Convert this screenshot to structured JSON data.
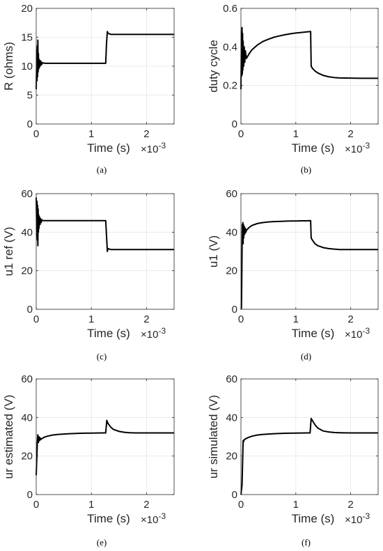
{
  "chart_data": [
    {
      "type": "line",
      "caption": "(a)",
      "xlabel": "Time (s)",
      "ylabel": "R (ohms)",
      "x_exponent": "×10",
      "x_exponent_power": "-3",
      "xlim": [
        0,
        2.5
      ],
      "ylim": [
        0,
        20
      ],
      "xticks": [
        0,
        1,
        2
      ],
      "yticks": [
        0,
        5,
        10,
        15,
        20
      ],
      "grid": true,
      "series": [
        {
          "x": [
            0,
            0.01,
            0.015,
            0.02,
            0.025,
            0.03,
            0.035,
            0.04,
            0.045,
            0.05,
            0.06,
            0.07,
            0.08,
            0.09,
            0.1,
            0.12,
            0.15,
            1.26,
            1.275,
            1.29,
            1.3,
            1.35,
            2.5
          ],
          "y": [
            6,
            12.8,
            7.5,
            13.5,
            8.2,
            14.5,
            9,
            12.2,
            9.5,
            11.2,
            9.8,
            11.0,
            10.1,
            10.8,
            10.3,
            10.6,
            10.5,
            10.5,
            14.0,
            16.0,
            15.7,
            15.5,
            15.5
          ]
        }
      ]
    },
    {
      "type": "line",
      "caption": "(b)",
      "xlabel": "Time (s)",
      "ylabel": "duty cycle",
      "x_exponent": "×10",
      "x_exponent_power": "-3",
      "xlim": [
        0,
        2.5
      ],
      "ylim": [
        0,
        0.6
      ],
      "xticks": [
        0,
        1,
        2
      ],
      "yticks": [
        0,
        0.2,
        0.4,
        0.6
      ],
      "grid": true,
      "series": [
        {
          "x": [
            0,
            0.01,
            0.015,
            0.02,
            0.025,
            0.03,
            0.035,
            0.04,
            0.05,
            0.06,
            0.07,
            0.08,
            0.1,
            0.15,
            0.2,
            0.3,
            0.4,
            0.5,
            0.6,
            0.7,
            0.8,
            0.9,
            1.0,
            1.1,
            1.2,
            1.27,
            1.28,
            1.3,
            1.35,
            1.4,
            1.5,
            1.6,
            1.7,
            1.8,
            2.0,
            2.2,
            2.5
          ],
          "y": [
            0.18,
            0.48,
            0.25,
            0.5,
            0.26,
            0.47,
            0.28,
            0.43,
            0.3,
            0.4,
            0.32,
            0.38,
            0.34,
            0.365,
            0.385,
            0.41,
            0.428,
            0.44,
            0.45,
            0.457,
            0.463,
            0.468,
            0.472,
            0.475,
            0.478,
            0.48,
            0.3,
            0.29,
            0.275,
            0.265,
            0.252,
            0.245,
            0.241,
            0.239,
            0.238,
            0.237,
            0.237
          ]
        }
      ]
    },
    {
      "type": "line",
      "caption": "(c)",
      "xlabel": "Time (s)",
      "ylabel": "u1 ref (V)",
      "x_exponent": "×10",
      "x_exponent_power": "-3",
      "xlim": [
        0,
        2.5
      ],
      "ylim": [
        0,
        60
      ],
      "xticks": [
        0,
        1,
        2
      ],
      "yticks": [
        0,
        20,
        40,
        60
      ],
      "grid": true,
      "series": [
        {
          "x": [
            0,
            0.01,
            0.015,
            0.02,
            0.025,
            0.03,
            0.035,
            0.04,
            0.045,
            0.05,
            0.06,
            0.07,
            0.08,
            0.09,
            0.1,
            0.12,
            0.15,
            1.26,
            1.275,
            1.29,
            1.3,
            1.35,
            2.5
          ],
          "y": [
            58,
            38,
            56,
            36,
            54,
            33,
            52,
            40,
            49,
            42,
            48,
            44,
            47,
            45,
            46.5,
            46,
            46,
            46,
            38,
            30,
            31.5,
            31,
            31
          ]
        }
      ]
    },
    {
      "type": "line",
      "caption": "(d)",
      "xlabel": "Time (s)",
      "ylabel": "u1 (V)",
      "x_exponent": "×10",
      "x_exponent_power": "-3",
      "xlim": [
        0,
        2.5
      ],
      "ylim": [
        0,
        60
      ],
      "xticks": [
        0,
        1,
        2
      ],
      "yticks": [
        0,
        20,
        40,
        60
      ],
      "grid": true,
      "series": [
        {
          "x": [
            0,
            0.01,
            0.02,
            0.025,
            0.03,
            0.035,
            0.04,
            0.045,
            0.05,
            0.06,
            0.07,
            0.08,
            0.09,
            0.1,
            0.15,
            0.2,
            0.3,
            0.4,
            0.5,
            0.6,
            0.7,
            0.8,
            0.9,
            1.0,
            1.1,
            1.2,
            1.27,
            1.28,
            1.3,
            1.35,
            1.4,
            1.5,
            1.6,
            1.7,
            1.8,
            2.0,
            2.2,
            2.5
          ],
          "y": [
            0,
            1,
            30,
            44,
            36,
            45,
            34,
            44,
            37,
            43,
            39,
            42,
            40,
            41,
            42.5,
            43.5,
            44.5,
            45,
            45.3,
            45.5,
            45.6,
            45.7,
            45.8,
            45.8,
            45.9,
            45.9,
            46,
            37,
            36,
            34,
            33,
            32,
            31.5,
            31.2,
            31,
            31,
            31,
            31
          ]
        }
      ]
    },
    {
      "type": "line",
      "caption": "(e)",
      "xlabel": "Time (s)",
      "ylabel": "ur estimated (V)",
      "x_exponent": "×10",
      "x_exponent_power": "-3",
      "xlim": [
        0,
        2.5
      ],
      "ylim": [
        0,
        60
      ],
      "xticks": [
        0,
        1,
        2
      ],
      "yticks": [
        0,
        20,
        40,
        60
      ],
      "grid": true,
      "series": [
        {
          "x": [
            0,
            0.02,
            0.03,
            0.04,
            0.05,
            0.06,
            0.07,
            0.08,
            0.1,
            0.15,
            0.2,
            0.3,
            0.4,
            0.5,
            0.6,
            0.8,
            1.0,
            1.2,
            1.26,
            1.28,
            1.3,
            1.35,
            1.4,
            1.5,
            1.6,
            1.7,
            1.8,
            2.0,
            2.5
          ],
          "y": [
            10,
            27,
            31,
            27,
            30,
            28,
            29.5,
            28.5,
            29,
            29.8,
            30.3,
            30.9,
            31.2,
            31.4,
            31.6,
            31.8,
            31.9,
            32,
            32,
            38.5,
            37,
            35,
            33.8,
            32.8,
            32.3,
            32.1,
            32,
            32,
            32
          ]
        }
      ]
    },
    {
      "type": "line",
      "caption": "(f)",
      "xlabel": "Time (s)",
      "ylabel": "ur simulated (V)",
      "x_exponent": "×10",
      "x_exponent_power": "-3",
      "xlim": [
        0,
        2.5
      ],
      "ylim": [
        0,
        60
      ],
      "xticks": [
        0,
        1,
        2
      ],
      "yticks": [
        0,
        20,
        40,
        60
      ],
      "grid": true,
      "series": [
        {
          "x": [
            0,
            0.02,
            0.04,
            0.05,
            0.06,
            0.08,
            0.1,
            0.15,
            0.2,
            0.3,
            0.4,
            0.5,
            0.6,
            0.8,
            1.0,
            1.2,
            1.26,
            1.28,
            1.3,
            1.35,
            1.4,
            1.5,
            1.6,
            1.7,
            1.8,
            2.0,
            2.5
          ],
          "y": [
            0,
            5,
            28,
            27.5,
            28.5,
            28.8,
            29.2,
            29.8,
            30.3,
            30.9,
            31.2,
            31.4,
            31.6,
            31.8,
            31.9,
            32,
            32,
            39.5,
            38.5,
            36.2,
            34.5,
            33,
            32.5,
            32.2,
            32.1,
            32,
            32
          ]
        }
      ]
    }
  ]
}
